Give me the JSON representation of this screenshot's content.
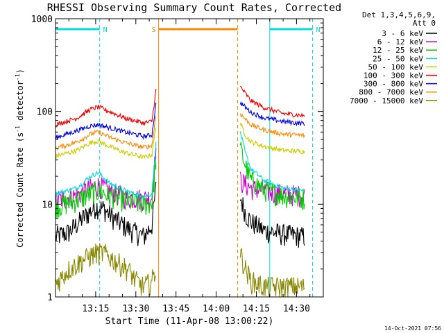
{
  "chart_data": {
    "type": "line",
    "title": "RHESSI Observing Summary Count Rates, Corrected",
    "xlabel": "Start Time (11-Apr-08 13:00:22)",
    "ylabel_main": "Corrected Count Rate (s",
    "ylabel_sup1": "-1",
    "ylabel_mid": " detector",
    "ylabel_sup2": "-1",
    "ylabel_end": ")",
    "footer": "14-Oct-2021 07:56",
    "y_scale": "log",
    "ylim": [
      1,
      1000
    ],
    "xlim_minutes": [
      0,
      100
    ],
    "x_ticks": [
      {
        "m": 15,
        "label": "13:15"
      },
      {
        "m": 30,
        "label": "13:30"
      },
      {
        "m": 45,
        "label": "13:45"
      },
      {
        "m": 60,
        "label": "14:00"
      },
      {
        "m": 75,
        "label": "14:15"
      },
      {
        "m": 90,
        "label": "14:30"
      }
    ],
    "y_ticks": [
      {
        "v": 1,
        "label": "1"
      },
      {
        "v": 10,
        "label": "10"
      },
      {
        "v": 100,
        "label": "100"
      },
      {
        "v": 1000,
        "label": "1000"
      }
    ],
    "legend_header": [
      "Det 1,3,4,5,6,9,",
      "Att 0"
    ],
    "legend_position": "top-right, outside plot",
    "series": [
      {
        "name": "3 - 6 keV",
        "color": "#000000",
        "pre": [
          [
            0,
            4.5
          ],
          [
            5,
            5
          ],
          [
            10,
            7
          ],
          [
            15,
            9.5
          ],
          [
            18,
            9
          ],
          [
            22,
            7
          ],
          [
            27,
            5.5
          ],
          [
            33,
            4.5
          ],
          [
            36,
            6
          ],
          [
            37.5,
            15
          ]
        ],
        "post": [
          [
            69,
            12
          ],
          [
            71,
            8
          ],
          [
            73,
            6.5
          ],
          [
            78,
            5.2
          ],
          [
            85,
            4.8
          ],
          [
            93,
            4.5
          ]
        ]
      },
      {
        "name": "6 - 12 keV",
        "color": "#cc00cc",
        "pre": [
          [
            0,
            11
          ],
          [
            8,
            12.5
          ],
          [
            13,
            15
          ],
          [
            16,
            16
          ],
          [
            20,
            14
          ],
          [
            26,
            12
          ],
          [
            33,
            11.5
          ],
          [
            36,
            12
          ],
          [
            37.5,
            40
          ]
        ],
        "post": [
          [
            69,
            18
          ],
          [
            73,
            15
          ],
          [
            78,
            14
          ],
          [
            85,
            13
          ],
          [
            93,
            12.5
          ]
        ]
      },
      {
        "name": "12 - 25 keV",
        "color": "#00cc00",
        "pre": [
          [
            0,
            9.5
          ],
          [
            8,
            11
          ],
          [
            13,
            13
          ],
          [
            16,
            14
          ],
          [
            20,
            12.5
          ],
          [
            26,
            11
          ],
          [
            33,
            10
          ],
          [
            36,
            10.5
          ],
          [
            37.5,
            30
          ]
        ],
        "post": [
          [
            69,
            40
          ],
          [
            71,
            26
          ],
          [
            73,
            18
          ],
          [
            78,
            14.5
          ],
          [
            85,
            12.5
          ],
          [
            93,
            11.5
          ]
        ]
      },
      {
        "name": "25 - 50 keV",
        "color": "#00dddd",
        "pre": [
          [
            0,
            13
          ],
          [
            8,
            15
          ],
          [
            13,
            20
          ],
          [
            16,
            22
          ],
          [
            20,
            17
          ],
          [
            26,
            14
          ],
          [
            33,
            12
          ],
          [
            36,
            13
          ],
          [
            37.5,
            45
          ]
        ],
        "post": [
          [
            69,
            60
          ],
          [
            71,
            35
          ],
          [
            73,
            24
          ],
          [
            78,
            18
          ],
          [
            85,
            15
          ],
          [
            93,
            14
          ]
        ]
      },
      {
        "name": "50 - 100 keV",
        "color": "#cccc00",
        "pre": [
          [
            0,
            33
          ],
          [
            8,
            38
          ],
          [
            13,
            46
          ],
          [
            16,
            48
          ],
          [
            20,
            42
          ],
          [
            26,
            36
          ],
          [
            33,
            32
          ],
          [
            36,
            34
          ],
          [
            37.5,
            70
          ]
        ],
        "post": [
          [
            69,
            75
          ],
          [
            71,
            55
          ],
          [
            73,
            47
          ],
          [
            78,
            42
          ],
          [
            85,
            38
          ],
          [
            93,
            37
          ]
        ]
      },
      {
        "name": "100 - 300 keV",
        "color": "#ee0000",
        "pre": [
          [
            0,
            72
          ],
          [
            8,
            85
          ],
          [
            13,
            105
          ],
          [
            16,
            112
          ],
          [
            20,
            100
          ],
          [
            26,
            85
          ],
          [
            33,
            75
          ],
          [
            36,
            78
          ],
          [
            37.5,
            170
          ]
        ],
        "post": [
          [
            69,
            185
          ],
          [
            71,
            155
          ],
          [
            73,
            130
          ],
          [
            78,
            110
          ],
          [
            85,
            95
          ],
          [
            93,
            90
          ]
        ]
      },
      {
        "name": "300 - 800 keV",
        "color": "#0000dd",
        "pre": [
          [
            0,
            52
          ],
          [
            8,
            62
          ],
          [
            13,
            70
          ],
          [
            16,
            72
          ],
          [
            20,
            67
          ],
          [
            26,
            60
          ],
          [
            33,
            54
          ],
          [
            36,
            56
          ],
          [
            37.5,
            120
          ]
        ],
        "post": [
          [
            69,
            125
          ],
          [
            71,
            110
          ],
          [
            73,
            98
          ],
          [
            78,
            85
          ],
          [
            85,
            78
          ],
          [
            93,
            74
          ]
        ]
      },
      {
        "name": "800 - 7000 keV",
        "color": "#ff8800",
        "pre": [
          [
            0,
            40
          ],
          [
            8,
            47
          ],
          [
            13,
            57
          ],
          [
            16,
            60
          ],
          [
            20,
            53
          ],
          [
            26,
            46
          ],
          [
            33,
            41
          ],
          [
            36,
            43
          ],
          [
            37.5,
            90
          ]
        ],
        "post": [
          [
            69,
            95
          ],
          [
            71,
            82
          ],
          [
            73,
            72
          ],
          [
            78,
            63
          ],
          [
            85,
            57
          ],
          [
            93,
            55
          ]
        ]
      },
      {
        "name": "7000 - 15000 keV",
        "color": "#888800",
        "pre": [
          [
            0,
            1.4
          ],
          [
            5,
            2
          ],
          [
            10,
            2.5
          ],
          [
            15,
            3
          ],
          [
            18,
            3
          ],
          [
            22,
            2.5
          ],
          [
            27,
            2
          ],
          [
            30,
            1.5
          ],
          [
            33,
            1.3
          ],
          [
            36,
            1.5
          ],
          [
            37.5,
            2
          ]
        ],
        "post": [
          [
            69,
            3
          ],
          [
            71,
            2
          ],
          [
            73,
            1.5
          ],
          [
            78,
            1.3
          ],
          [
            85,
            1.3
          ],
          [
            93,
            1.3
          ]
        ]
      }
    ],
    "markers": [
      {
        "label": "N",
        "color": "#00dddd",
        "x_start": 0,
        "x_end": 16.5
      },
      {
        "label": "N",
        "color": "#00dddd",
        "x_start": 80,
        "x_end": 96
      },
      {
        "label": "S",
        "color": "#ff8800",
        "x_start": 38.5,
        "x_end": 68
      }
    ],
    "gap_minutes": [
      38.5,
      68
    ]
  }
}
